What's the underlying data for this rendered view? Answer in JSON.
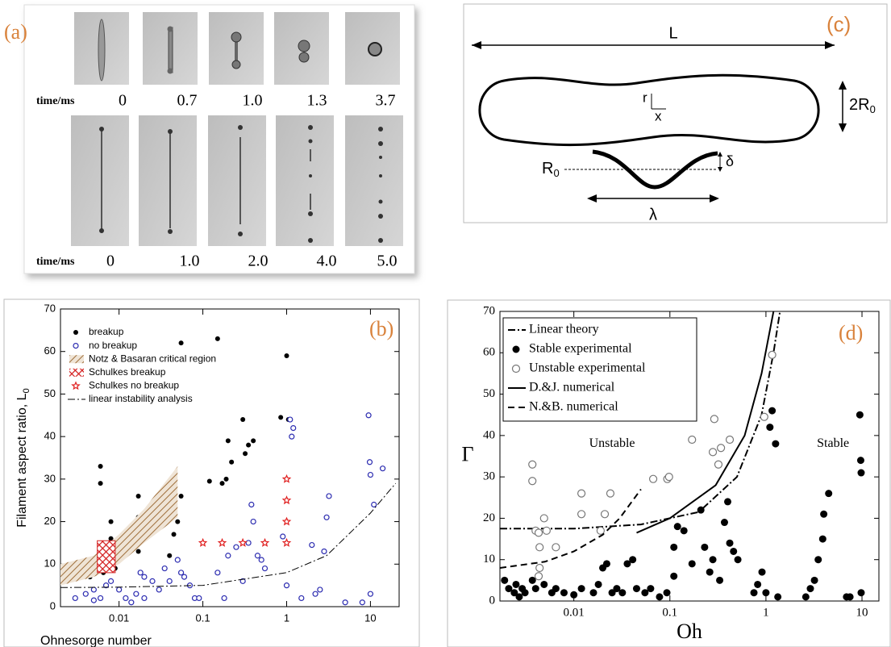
{
  "panel_a": {
    "label": "(a)",
    "rows": [
      {
        "axis_label": "time/ms",
        "times": [
          "0",
          "0.7",
          "1.0",
          "1.3",
          "3.7"
        ]
      },
      {
        "axis_label": "time/ms",
        "times": [
          "0",
          "1.0",
          "2.0",
          "4.0",
          "5.0"
        ]
      }
    ]
  },
  "panel_c": {
    "label": "(c)",
    "length": "L",
    "r": "r",
    "x": "x",
    "diameter": "2R",
    "diameter_subscript": "0",
    "radius": "R",
    "radius_subscript": "0",
    "amplitude": "δ",
    "wavelength": "λ"
  },
  "chart_data": [
    {
      "type": "scatter",
      "label": "(b)",
      "xlabel": "Ohnesorge number",
      "ylabel": "Filament aspect ratio, L",
      "ylabel_subscript": "0",
      "xscale": "log",
      "xlim": [
        0.002,
        22
      ],
      "ylim": [
        0,
        70
      ],
      "xticks": [
        0.01,
        0.1,
        1,
        10
      ],
      "yticks": [
        0,
        10,
        20,
        30,
        40,
        50,
        60,
        70
      ],
      "legend": "upper left",
      "series": [
        {
          "name": "breakup",
          "kind": "scatter",
          "marker": "filled",
          "color": "#000000",
          "x": [
            0.0045,
            0.006,
            0.006,
            0.0065,
            0.007,
            0.008,
            0.008,
            0.009,
            0.009,
            0.01,
            0.017,
            0.017,
            0.017,
            0.02,
            0.04,
            0.045,
            0.05,
            0.055,
            0.055,
            0.12,
            0.15,
            0.17,
            0.19,
            0.2,
            0.22,
            0.3,
            0.32,
            0.35,
            0.4,
            0.85,
            1.0,
            1.05
          ],
          "values": [
            7,
            33,
            29,
            8,
            10,
            16,
            20,
            12,
            9,
            15,
            21,
            26,
            13,
            18,
            12,
            17,
            20,
            26,
            62,
            29.5,
            63,
            29,
            30,
            39,
            34,
            44,
            36,
            38,
            39,
            44.5,
            59,
            44
          ]
        },
        {
          "name": "no breakup",
          "kind": "scatter",
          "marker": "open",
          "color": "#2b2bb0",
          "x": [
            0.003,
            0.004,
            0.005,
            0.005,
            0.006,
            0.007,
            0.008,
            0.01,
            0.012,
            0.014,
            0.016,
            0.018,
            0.02,
            0.02,
            0.025,
            0.03,
            0.035,
            0.04,
            0.05,
            0.055,
            0.06,
            0.07,
            0.08,
            0.09,
            0.15,
            0.18,
            0.2,
            0.25,
            0.3,
            0.35,
            0.38,
            0.4,
            0.45,
            0.5,
            0.55,
            0.9,
            1.0,
            1.1,
            1.15,
            1.2,
            1.5,
            2,
            2.2,
            2.5,
            2.8,
            3,
            3.2,
            5,
            8,
            9.5,
            9.8,
            10,
            11,
            14,
            10
          ],
          "values": [
            2,
            3,
            1.5,
            4,
            2,
            5,
            6,
            4,
            2,
            1,
            3,
            8,
            7,
            2,
            6,
            4,
            9,
            6,
            11,
            8,
            7,
            5,
            2,
            2,
            8,
            2,
            12,
            14,
            6,
            15,
            24,
            20,
            12,
            11,
            9,
            16.5,
            5,
            44,
            40,
            42,
            2,
            14.5,
            3,
            4,
            13,
            21,
            26,
            1,
            1,
            45,
            34,
            31,
            24,
            32.5,
            3
          ]
        },
        {
          "name": "Notz & Basaran critical region",
          "kind": "band",
          "pattern": "hatch",
          "color": "#a0703c",
          "x": [
            0.002,
            0.005,
            0.01,
            0.02,
            0.05
          ],
          "low": [
            5,
            7,
            10,
            15,
            21
          ],
          "high": [
            10,
            12,
            17,
            23,
            33
          ]
        },
        {
          "name": "Schulkes breakup",
          "kind": "band",
          "pattern": "crosshatch",
          "color": "#d42020",
          "x": [
            0.0055,
            0.009
          ],
          "low": [
            8,
            8
          ],
          "high": [
            15.5,
            15.5
          ]
        },
        {
          "name": "Schulkes no breakup",
          "kind": "scatter",
          "marker": "star",
          "color": "#e02020",
          "x": [
            0.1,
            0.17,
            0.3,
            0.55,
            1,
            1,
            1,
            1
          ],
          "values": [
            15,
            15,
            15,
            15,
            15,
            20,
            25,
            30
          ]
        },
        {
          "name": "linear instability analysis",
          "kind": "line",
          "style": "dashdot",
          "color": "#000000",
          "x": [
            0.002,
            0.01,
            0.1,
            1,
            3,
            10,
            20
          ],
          "values": [
            4.5,
            4.6,
            5,
            8,
            12,
            22,
            29
          ]
        }
      ]
    },
    {
      "type": "scatter",
      "label": "(d)",
      "xlabel": "Oh",
      "ylabel": "Γ",
      "xscale": "log",
      "xlim": [
        0.0017,
        15
      ],
      "ylim": [
        0,
        70
      ],
      "xticks": [
        0.01,
        0.1,
        1,
        10
      ],
      "yticks": [
        0,
        10,
        20,
        30,
        40,
        50,
        60,
        70
      ],
      "legend": "upper left",
      "annotations": [
        {
          "text": "Unstable",
          "x": 0.025,
          "y": 38
        },
        {
          "text": "Stable",
          "x": 5,
          "y": 38
        }
      ],
      "series": [
        {
          "name": "Linear theory",
          "kind": "line",
          "style": "dashdot",
          "color": "#000000",
          "x": [
            0.0017,
            0.01,
            0.05,
            0.2,
            0.5,
            0.9,
            1.2,
            1.4
          ],
          "values": [
            17.5,
            17.5,
            18.5,
            21.5,
            30,
            45,
            60,
            70
          ]
        },
        {
          "name": "Stable experimental",
          "kind": "scatter",
          "marker": "filled",
          "color": "#000000",
          "x": [
            0.0019,
            0.0021,
            0.0024,
            0.0025,
            0.0027,
            0.0029,
            0.0031,
            0.0037,
            0.004,
            0.0049,
            0.0059,
            0.0065,
            0.0079,
            0.01,
            0.012,
            0.016,
            0.018,
            0.02,
            0.022,
            0.025,
            0.028,
            0.032,
            0.036,
            0.041,
            0.045,
            0.055,
            0.063,
            0.078,
            0.093,
            0.11,
            0.11,
            0.12,
            0.14,
            0.17,
            0.21,
            0.23,
            0.26,
            0.28,
            0.33,
            0.37,
            0.4,
            0.42,
            0.46,
            0.51,
            0.75,
            0.82,
            0.91,
            1.0,
            1.1,
            1.16,
            1.26,
            1.33,
            2.6,
            2.9,
            3.2,
            3.5,
            3.9,
            4.0,
            4.5,
            6.9,
            7.5,
            9.5,
            9.7,
            9.8,
            9.8
          ],
          "values": [
            5,
            3,
            2,
            4,
            1,
            3,
            2,
            5,
            3,
            4,
            2,
            3,
            2,
            1.5,
            3,
            2,
            4,
            8,
            9,
            2,
            3,
            2,
            9,
            10,
            3,
            2,
            3,
            1,
            2,
            6,
            13,
            18,
            17,
            9,
            22,
            13,
            7,
            10,
            5,
            19,
            24,
            14,
            12,
            10,
            2,
            4,
            7,
            2,
            42,
            46,
            38,
            1,
            1,
            3,
            5,
            10,
            15,
            21,
            26,
            1,
            1,
            45,
            34,
            31,
            2
          ]
        },
        {
          "name": "Unstable experimental",
          "kind": "scatter",
          "marker": "open",
          "color": "#777777",
          "x": [
            0.0037,
            0.0037,
            0.004,
            0.0043,
            0.0044,
            0.0049,
            0.0052,
            0.0044,
            0.0043,
            0.0065,
            0.012,
            0.012,
            0.019,
            0.021,
            0.024,
            0.067,
            0.094,
            0.098,
            0.17,
            0.28,
            0.29,
            0.32,
            0.34,
            0.42,
            0.96,
            1.16
          ],
          "values": [
            33,
            29,
            17,
            16.5,
            13,
            20,
            17,
            8,
            6,
            13,
            26,
            21,
            17,
            21,
            26,
            29.5,
            29.5,
            30,
            39,
            36,
            44,
            33,
            37,
            39,
            44.5,
            59.5
          ]
        },
        {
          "name": "D.&J. numerical",
          "kind": "line",
          "style": "solid",
          "color": "#000000",
          "x": [
            0.045,
            0.1,
            0.3,
            0.6,
            0.9,
            1.2
          ],
          "values": [
            16.5,
            20,
            28,
            40,
            55,
            70
          ]
        },
        {
          "name": "N.&B. numerical",
          "kind": "line",
          "style": "dashed",
          "color": "#000000",
          "x": [
            0.0017,
            0.005,
            0.01,
            0.02,
            0.03,
            0.05
          ],
          "values": [
            8,
            9.5,
            12,
            16,
            20,
            27
          ]
        }
      ]
    }
  ]
}
